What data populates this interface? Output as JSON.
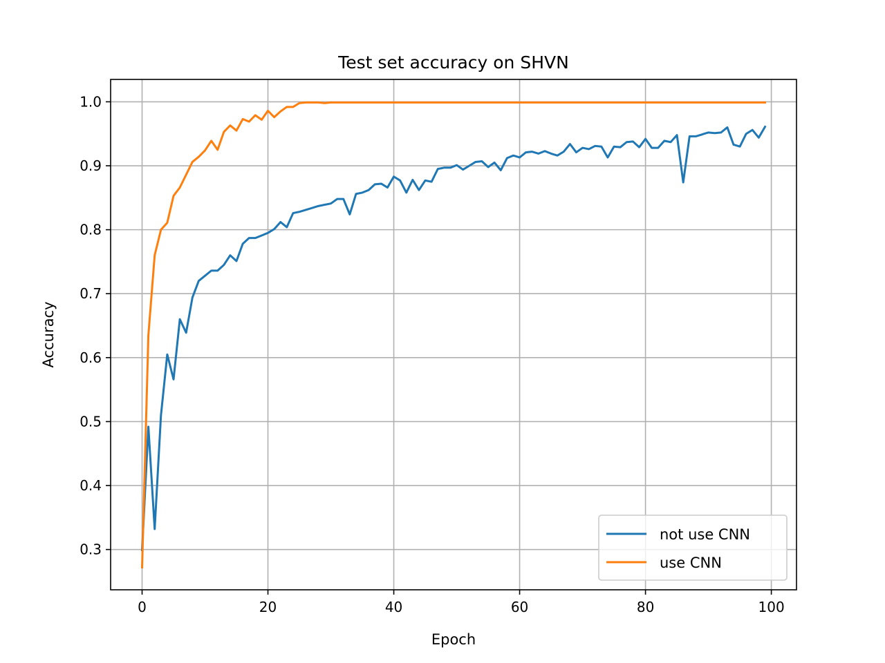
{
  "chart_data": {
    "type": "line",
    "title": "Test set accuracy on SHVN",
    "xlabel": "Epoch",
    "ylabel": "Accuracy",
    "xlim": [
      -5,
      104
    ],
    "ylim": [
      0.237,
      1.035
    ],
    "xticks": [
      0,
      20,
      40,
      60,
      80,
      100
    ],
    "xtick_labels": [
      "0",
      "20",
      "40",
      "60",
      "80",
      "100"
    ],
    "yticks": [
      0.3,
      0.4,
      0.5,
      0.6,
      0.7,
      0.8,
      0.9,
      1.0
    ],
    "ytick_labels": [
      "0.3",
      "0.4",
      "0.5",
      "0.6",
      "0.7",
      "0.8",
      "0.9",
      "1.0"
    ],
    "grid": true,
    "legend_position": "lower-right",
    "series": [
      {
        "name": "not use CNN",
        "color": "#1f77b4",
        "x": [
          0,
          1,
          2,
          3,
          4,
          5,
          6,
          7,
          8,
          9,
          10,
          11,
          12,
          13,
          14,
          15,
          16,
          17,
          18,
          19,
          20,
          21,
          22,
          23,
          24,
          25,
          26,
          27,
          28,
          29,
          30,
          31,
          32,
          33,
          34,
          35,
          36,
          37,
          38,
          39,
          40,
          41,
          42,
          43,
          44,
          45,
          46,
          47,
          48,
          49,
          50,
          51,
          52,
          53,
          54,
          55,
          56,
          57,
          58,
          59,
          60,
          61,
          62,
          63,
          64,
          65,
          66,
          67,
          68,
          69,
          70,
          71,
          72,
          73,
          74,
          75,
          76,
          77,
          78,
          79,
          80,
          81,
          82,
          83,
          84,
          85,
          86,
          87,
          88,
          89,
          90,
          91,
          92,
          93,
          94,
          95,
          96,
          97,
          98,
          99
        ],
        "values": [
          0.299,
          0.492,
          0.332,
          0.51,
          0.605,
          0.566,
          0.66,
          0.639,
          0.694,
          0.72,
          0.728,
          0.736,
          0.736,
          0.745,
          0.76,
          0.751,
          0.778,
          0.787,
          0.787,
          0.791,
          0.795,
          0.801,
          0.812,
          0.804,
          0.826,
          0.828,
          0.831,
          0.834,
          0.837,
          0.839,
          0.841,
          0.848,
          0.848,
          0.824,
          0.856,
          0.858,
          0.862,
          0.871,
          0.872,
          0.866,
          0.883,
          0.877,
          0.858,
          0.878,
          0.862,
          0.877,
          0.875,
          0.895,
          0.897,
          0.897,
          0.901,
          0.894,
          0.9,
          0.906,
          0.907,
          0.898,
          0.905,
          0.893,
          0.912,
          0.916,
          0.913,
          0.921,
          0.922,
          0.919,
          0.923,
          0.919,
          0.916,
          0.922,
          0.934,
          0.921,
          0.928,
          0.926,
          0.931,
          0.93,
          0.913,
          0.93,
          0.929,
          0.937,
          0.938,
          0.929,
          0.942,
          0.928,
          0.928,
          0.939,
          0.937,
          0.948,
          0.874,
          0.946,
          0.946,
          0.949,
          0.952,
          0.951,
          0.952,
          0.96,
          0.933,
          0.93,
          0.95,
          0.956,
          0.944,
          0.961
        ]
      },
      {
        "name": "use CNN",
        "color": "#ff7f0e",
        "x": [
          0,
          1,
          2,
          3,
          4,
          5,
          6,
          7,
          8,
          9,
          10,
          11,
          12,
          13,
          14,
          15,
          16,
          17,
          18,
          19,
          20,
          21,
          22,
          23,
          24,
          25,
          26,
          27,
          28,
          29,
          30,
          31,
          32,
          33,
          34,
          35,
          36,
          37,
          38,
          39,
          40,
          41,
          42,
          43,
          44,
          45,
          46,
          47,
          48,
          49,
          50,
          51,
          52,
          53,
          54,
          55,
          56,
          57,
          58,
          59,
          60,
          61,
          62,
          63,
          64,
          65,
          66,
          67,
          68,
          69,
          70,
          71,
          72,
          73,
          74,
          75,
          76,
          77,
          78,
          79,
          80,
          81,
          82,
          83,
          84,
          85,
          86,
          87,
          88,
          89,
          90,
          91,
          92,
          93,
          94,
          95,
          96,
          97,
          98,
          99
        ],
        "values": [
          0.272,
          0.635,
          0.76,
          0.8,
          0.811,
          0.853,
          0.866,
          0.886,
          0.906,
          0.914,
          0.924,
          0.939,
          0.925,
          0.953,
          0.963,
          0.955,
          0.973,
          0.969,
          0.979,
          0.972,
          0.986,
          0.976,
          0.985,
          0.992,
          0.992,
          0.998,
          0.999,
          0.999,
          0.999,
          0.998,
          0.999,
          0.999,
          0.999,
          0.999,
          0.999,
          0.999,
          0.999,
          0.999,
          0.999,
          0.999,
          0.999,
          0.999,
          0.999,
          0.999,
          0.999,
          0.999,
          0.999,
          0.999,
          0.999,
          0.999,
          0.999,
          0.999,
          0.999,
          0.999,
          0.999,
          0.999,
          0.999,
          0.999,
          0.999,
          0.999,
          0.999,
          0.999,
          0.999,
          0.999,
          0.999,
          0.999,
          0.999,
          0.999,
          0.999,
          0.999,
          0.999,
          0.999,
          0.999,
          0.999,
          0.999,
          0.999,
          0.999,
          0.999,
          0.999,
          0.999,
          0.999,
          0.999,
          0.999,
          0.999,
          0.999,
          0.999,
          0.999,
          0.999,
          0.999,
          0.999,
          0.999,
          0.999,
          0.999,
          0.999,
          0.999,
          0.999,
          0.999,
          0.999,
          0.999,
          0.999
        ]
      }
    ]
  }
}
